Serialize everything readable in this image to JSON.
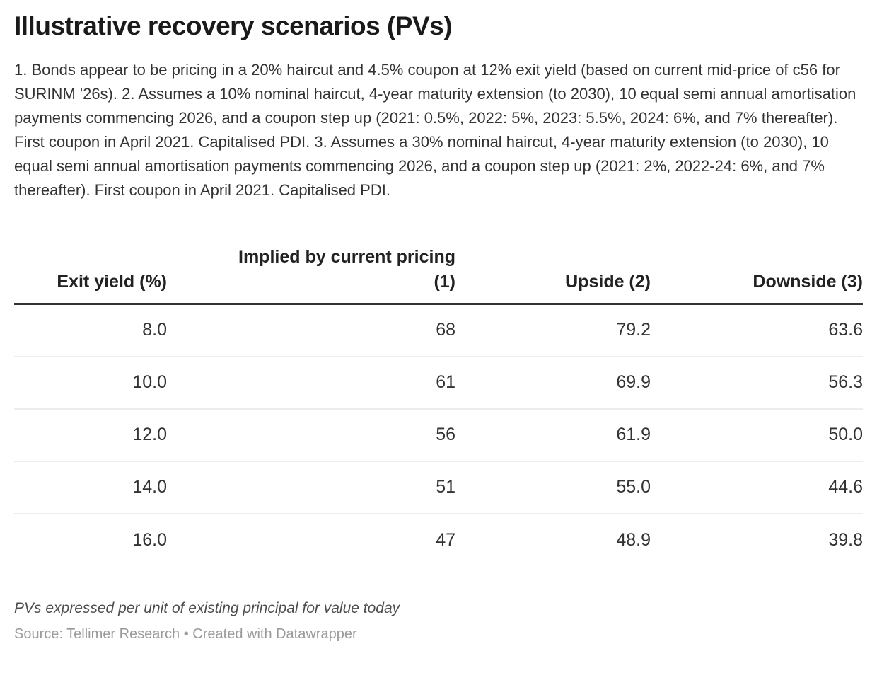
{
  "header": {
    "title": "Illustrative recovery scenarios (PVs)",
    "description": "1. Bonds appear to be pricing in a 20% haircut and 4.5% coupon at 12% exit yield (based on current mid-price of c56 for SURINM '26s). 2. Assumes a 10% nominal haircut, 4-year maturity extension (to 2030), 10 equal semi annual amortisation payments commencing 2026, and a coupon step up (2021: 0.5%, 2022: 5%, 2023: 5.5%, 2024: 6%, and 7% thereafter). First coupon in April 2021. Capitalised PDI. 3. Assumes a 30% nominal haircut, 4-year maturity extension (to 2030), 10 equal semi annual amortisation payments commencing 2026, and a coupon step up (2021: 2%, 2022-24: 6%, and 7% thereafter). First coupon in April 2021. Capitalised PDI."
  },
  "table": {
    "columns": [
      {
        "key": "exit-yield",
        "label": "Exit yield (%)"
      },
      {
        "key": "implied-by-current-pricing",
        "label": "Implied by current pricing\n(1)"
      },
      {
        "key": "upside",
        "label": "Upside (2)"
      },
      {
        "key": "downside",
        "label": "Downside (3)"
      }
    ],
    "rows": [
      [
        "8.0",
        "68",
        "79.2",
        "63.6"
      ],
      [
        "10.0",
        "61",
        "69.9",
        "56.3"
      ],
      [
        "12.0",
        "56",
        "61.9",
        "50.0"
      ],
      [
        "14.0",
        "51",
        "55.0",
        "44.6"
      ],
      [
        "16.0",
        "47",
        "48.9",
        "39.8"
      ]
    ]
  },
  "footer": {
    "note": "PVs expressed per unit of existing principal for value today",
    "source": "Source: Tellimer Research • Created with Datawrapper"
  },
  "colors": {
    "title": "#1a1a1a",
    "body_text": "#333333",
    "header_rule": "#333333",
    "row_divider": "#ededed",
    "note": "#4d4d4d",
    "source": "#9a9a9a",
    "background": "#ffffff"
  },
  "chart_data": {
    "type": "table",
    "title": "Illustrative recovery scenarios (PVs)",
    "columns": [
      "Exit yield (%)",
      "Implied by current pricing (1)",
      "Upside (2)",
      "Downside (3)"
    ],
    "rows": [
      [
        8.0,
        68,
        79.2,
        63.6
      ],
      [
        10.0,
        61,
        69.9,
        56.3
      ],
      [
        12.0,
        56,
        61.9,
        50.0
      ],
      [
        14.0,
        51,
        55.0,
        44.6
      ],
      [
        16.0,
        47,
        48.9,
        39.8
      ]
    ],
    "xlabel": "Exit yield (%)",
    "notes": "PVs expressed per unit of existing principal for value today",
    "source": "Source: Tellimer Research • Created with Datawrapper",
    "layout_hints": {
      "all_columns_right_aligned": true,
      "grid": "horizontal row dividers only"
    }
  }
}
